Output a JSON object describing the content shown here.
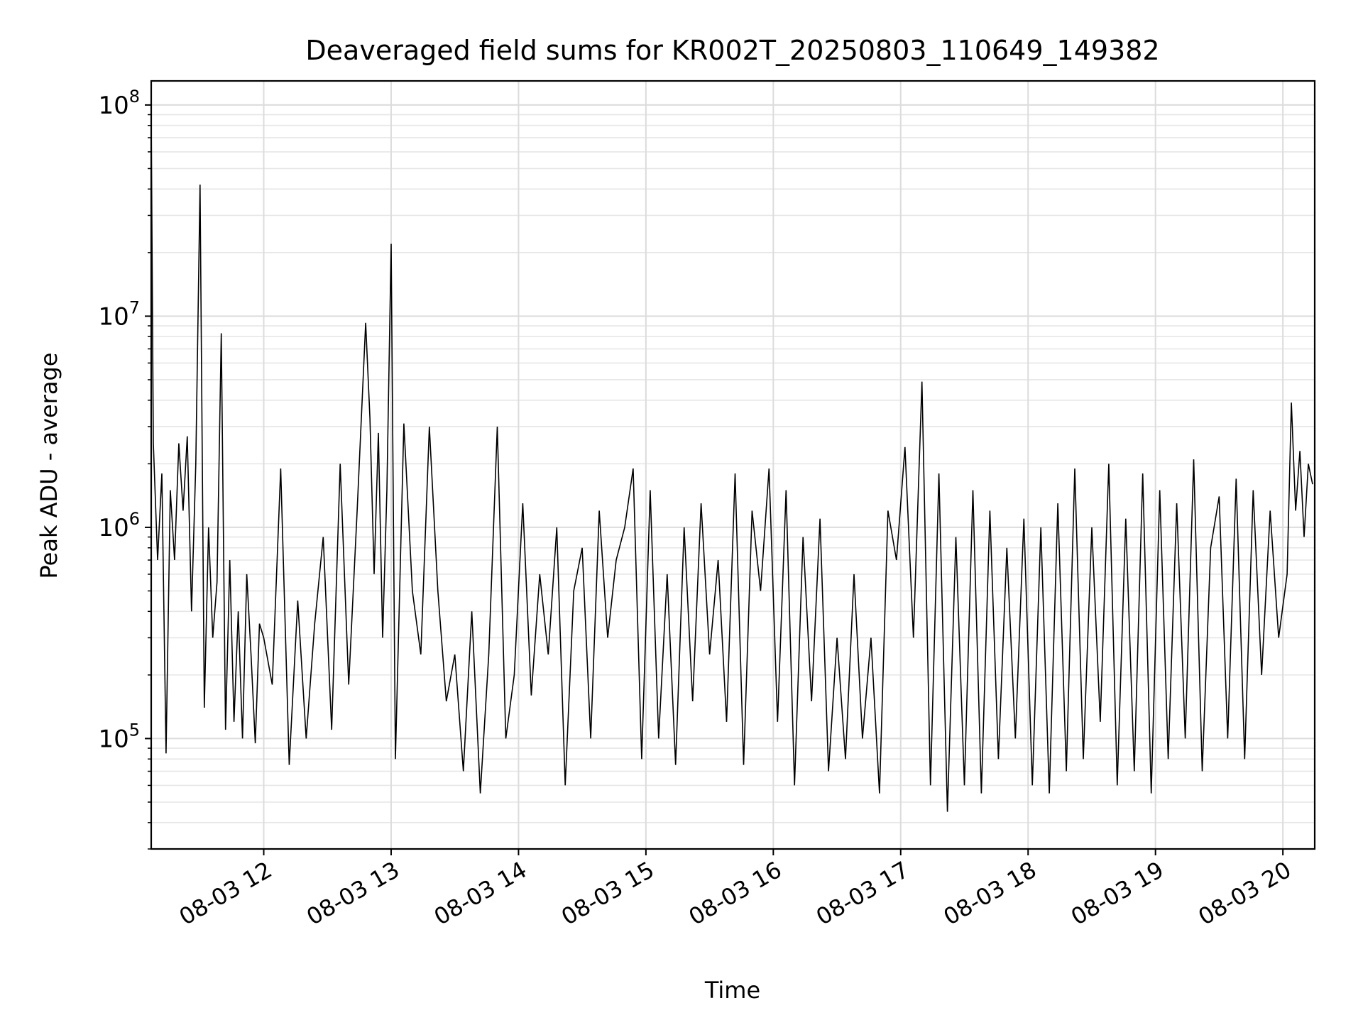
{
  "chart_data": {
    "type": "line",
    "title": "Deaveraged field sums for KR002T_20250803_110649_149382",
    "xlabel": "Time",
    "ylabel": "Peak ADU - average",
    "yscale": "log",
    "ylim": [
      30000,
      130000000
    ],
    "xlim": [
      "2025-08-03 11:07",
      "2025-08-03 20:15"
    ],
    "grid": "on",
    "line_color": "#000000",
    "x_ticks": [
      "08-03 12",
      "08-03 13",
      "08-03 14",
      "08-03 15",
      "08-03 16",
      "08-03 17",
      "08-03 18",
      "08-03 19",
      "08-03 20"
    ],
    "y_ticks": [
      {
        "label_base": "10",
        "label_exp": "5",
        "value": 100000
      },
      {
        "label_base": "10",
        "label_exp": "6",
        "value": 1000000
      },
      {
        "label_base": "10",
        "label_exp": "7",
        "value": 10000000
      },
      {
        "label_base": "10",
        "label_exp": "8",
        "value": 100000000
      }
    ],
    "series": [
      {
        "x": [
          "2025-08-03 11:07",
          "2025-08-03 11:08",
          "2025-08-03 11:10",
          "2025-08-03 11:12",
          "2025-08-03 11:14",
          "2025-08-03 11:16",
          "2025-08-03 11:18",
          "2025-08-03 11:20",
          "2025-08-03 11:22",
          "2025-08-03 11:24",
          "2025-08-03 11:26",
          "2025-08-03 11:28",
          "2025-08-03 11:30",
          "2025-08-03 11:32",
          "2025-08-03 11:34",
          "2025-08-03 11:36",
          "2025-08-03 11:38",
          "2025-08-03 11:40",
          "2025-08-03 11:42",
          "2025-08-03 11:44",
          "2025-08-03 11:46",
          "2025-08-03 11:48",
          "2025-08-03 11:50",
          "2025-08-03 11:52",
          "2025-08-03 11:54",
          "2025-08-03 11:56",
          "2025-08-03 11:58",
          "2025-08-03 12:00",
          "2025-08-03 12:04",
          "2025-08-03 12:08",
          "2025-08-03 12:12",
          "2025-08-03 12:16",
          "2025-08-03 12:20",
          "2025-08-03 12:24",
          "2025-08-03 12:28",
          "2025-08-03 12:32",
          "2025-08-03 12:36",
          "2025-08-03 12:40",
          "2025-08-03 12:44",
          "2025-08-03 12:48",
          "2025-08-03 12:50",
          "2025-08-03 12:52",
          "2025-08-03 12:54",
          "2025-08-03 12:56",
          "2025-08-03 12:58",
          "2025-08-03 13:00",
          "2025-08-03 13:02",
          "2025-08-03 13:06",
          "2025-08-03 13:10",
          "2025-08-03 13:14",
          "2025-08-03 13:18",
          "2025-08-03 13:22",
          "2025-08-03 13:26",
          "2025-08-03 13:30",
          "2025-08-03 13:34",
          "2025-08-03 13:38",
          "2025-08-03 13:42",
          "2025-08-03 13:46",
          "2025-08-03 13:50",
          "2025-08-03 13:54",
          "2025-08-03 13:58",
          "2025-08-03 14:02",
          "2025-08-03 14:06",
          "2025-08-03 14:10",
          "2025-08-03 14:14",
          "2025-08-03 14:18",
          "2025-08-03 14:22",
          "2025-08-03 14:26",
          "2025-08-03 14:30",
          "2025-08-03 14:34",
          "2025-08-03 14:38",
          "2025-08-03 14:42",
          "2025-08-03 14:46",
          "2025-08-03 14:50",
          "2025-08-03 14:54",
          "2025-08-03 14:58",
          "2025-08-03 15:02",
          "2025-08-03 15:06",
          "2025-08-03 15:10",
          "2025-08-03 15:14",
          "2025-08-03 15:18",
          "2025-08-03 15:22",
          "2025-08-03 15:26",
          "2025-08-03 15:30",
          "2025-08-03 15:34",
          "2025-08-03 15:38",
          "2025-08-03 15:42",
          "2025-08-03 15:46",
          "2025-08-03 15:50",
          "2025-08-03 15:54",
          "2025-08-03 15:58",
          "2025-08-03 16:02",
          "2025-08-03 16:06",
          "2025-08-03 16:10",
          "2025-08-03 16:14",
          "2025-08-03 16:18",
          "2025-08-03 16:22",
          "2025-08-03 16:26",
          "2025-08-03 16:30",
          "2025-08-03 16:34",
          "2025-08-03 16:38",
          "2025-08-03 16:42",
          "2025-08-03 16:46",
          "2025-08-03 16:50",
          "2025-08-03 16:54",
          "2025-08-03 16:58",
          "2025-08-03 17:02",
          "2025-08-03 17:06",
          "2025-08-03 17:10",
          "2025-08-03 17:14",
          "2025-08-03 17:18",
          "2025-08-03 17:22",
          "2025-08-03 17:26",
          "2025-08-03 17:30",
          "2025-08-03 17:34",
          "2025-08-03 17:38",
          "2025-08-03 17:42",
          "2025-08-03 17:46",
          "2025-08-03 17:50",
          "2025-08-03 17:54",
          "2025-08-03 17:58",
          "2025-08-03 18:02",
          "2025-08-03 18:06",
          "2025-08-03 18:10",
          "2025-08-03 18:14",
          "2025-08-03 18:18",
          "2025-08-03 18:22",
          "2025-08-03 18:26",
          "2025-08-03 18:30",
          "2025-08-03 18:34",
          "2025-08-03 18:38",
          "2025-08-03 18:42",
          "2025-08-03 18:46",
          "2025-08-03 18:50",
          "2025-08-03 18:54",
          "2025-08-03 18:58",
          "2025-08-03 19:02",
          "2025-08-03 19:06",
          "2025-08-03 19:10",
          "2025-08-03 19:14",
          "2025-08-03 19:18",
          "2025-08-03 19:22",
          "2025-08-03 19:26",
          "2025-08-03 19:30",
          "2025-08-03 19:34",
          "2025-08-03 19:38",
          "2025-08-03 19:42",
          "2025-08-03 19:46",
          "2025-08-03 19:50",
          "2025-08-03 19:54",
          "2025-08-03 19:58",
          "2025-08-03 20:02",
          "2025-08-03 20:04",
          "2025-08-03 20:06",
          "2025-08-03 20:08",
          "2025-08-03 20:10",
          "2025-08-03 20:12",
          "2025-08-03 20:14"
        ],
        "y": [
          87000000,
          2500000,
          700000,
          1800000,
          85000,
          1500000,
          700000,
          2500000,
          1200000,
          2700000,
          400000,
          2000000,
          42000000,
          140000,
          1000000,
          300000,
          550000,
          8300000,
          110000,
          700000,
          120000,
          400000,
          100000,
          600000,
          250000,
          95000,
          350000,
          300000,
          180000,
          1900000,
          75000,
          450000,
          100000,
          350000,
          900000,
          110000,
          2000000,
          180000,
          1200000,
          9300000,
          3300000,
          600000,
          2800000,
          300000,
          1500000,
          22000000,
          80000,
          3100000,
          500000,
          250000,
          3000000,
          500000,
          150000,
          250000,
          70000,
          400000,
          55000,
          250000,
          3000000,
          100000,
          200000,
          1300000,
          160000,
          600000,
          250000,
          1000000,
          60000,
          500000,
          800000,
          100000,
          1200000,
          300000,
          700000,
          1000000,
          1900000,
          80000,
          1500000,
          100000,
          600000,
          75000,
          1000000,
          150000,
          1300000,
          250000,
          700000,
          120000,
          1800000,
          75000,
          1200000,
          500000,
          1900000,
          120000,
          1500000,
          60000,
          900000,
          150000,
          1100000,
          70000,
          300000,
          80000,
          600000,
          100000,
          300000,
          55000,
          1200000,
          700000,
          2400000,
          300000,
          4900000,
          60000,
          1800000,
          45000,
          900000,
          60000,
          1500000,
          55000,
          1200000,
          80000,
          800000,
          100000,
          1100000,
          60000,
          1000000,
          55000,
          1300000,
          70000,
          1900000,
          80000,
          1000000,
          120000,
          2000000,
          60000,
          1100000,
          70000,
          1800000,
          55000,
          1500000,
          80000,
          1300000,
          100000,
          2100000,
          70000,
          800000,
          1400000,
          100000,
          1700000,
          80000,
          1500000,
          200000,
          1200000,
          300000,
          600000,
          3900000,
          1200000,
          2300000,
          900000,
          2000000,
          1600000
        ]
      }
    ]
  }
}
